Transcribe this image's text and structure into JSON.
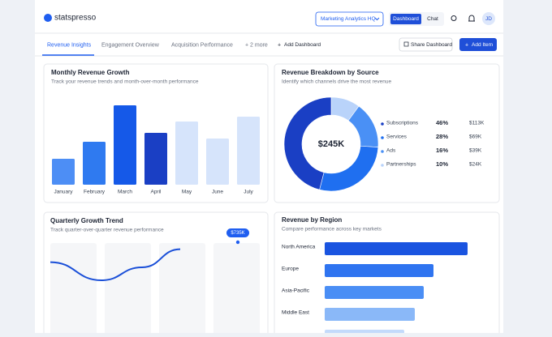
{
  "header": {
    "logo": "statspresso",
    "workspace": "Marketing Analytics HQ",
    "views": [
      "Dashboard",
      "Chat"
    ],
    "avatar": "JD"
  },
  "tabs": [
    "Revenue Insights",
    "Engagement Overview",
    "Acquisition Performance",
    "+ 2 more"
  ],
  "actions": {
    "add_dashboard": "Add Dashboard",
    "share": "Share Dashboard",
    "add_item": "Add Item"
  },
  "monthly": {
    "title": "Monthly Revenue Growth",
    "subtitle": "Track your revenue trends and month-over-month performance",
    "categories": [
      "January",
      "February",
      "March",
      "April",
      "May",
      "June",
      "July"
    ],
    "values": [
      32,
      53,
      98,
      64,
      78,
      57,
      84
    ],
    "colors": [
      "#4d8ef5",
      "#2f7af0",
      "#1559e8",
      "#1a3fc4",
      "#d6e4fb",
      "#d6e4fb",
      "#d6e4fb"
    ]
  },
  "breakdown": {
    "title": "Revenue Breakdown by Source",
    "subtitle": "Identify which channels drive the most revenue",
    "total": "$245K",
    "categories": [
      "Subscriptions",
      "Services",
      "Ads",
      "Partnerships"
    ],
    "values": [
      46,
      28,
      16,
      10
    ],
    "value_labels": [
      "46%",
      "28%",
      "16%",
      "10%"
    ],
    "amounts": [
      "$113K",
      "$69K",
      "$39K",
      "$24K"
    ],
    "colors": [
      "#1a3fc4",
      "#1f6ff0",
      "#4a90f5",
      "#b9d3fa"
    ]
  },
  "quarterly": {
    "title": "Quarterly Growth Trend",
    "subtitle": "Track quarter-over-quarter revenue performance",
    "values": [
      58,
      30,
      50,
      78
    ],
    "tooltip": "$735K"
  },
  "region": {
    "title": "Revenue by Region",
    "subtitle": "Compare performance across key markets",
    "categories": [
      "North America",
      "Europe",
      "Asia-Pacific",
      "Middle East",
      null
    ],
    "values": [
      176,
      134,
      122,
      111,
      98
    ],
    "colors": [
      "#1a54e0",
      "#2f74f0",
      "#4a8ef5",
      "#8ab8f8",
      "#c3dafb"
    ]
  }
}
